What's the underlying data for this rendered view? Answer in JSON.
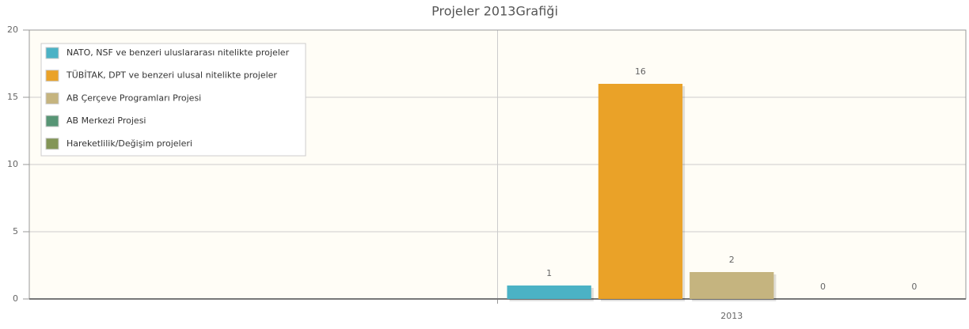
{
  "chart_data": {
    "type": "bar",
    "title": "Projeler 2013Grafiği",
    "categories": [
      null,
      "2013"
    ],
    "series": [
      {
        "name": "NATO, NSF ve benzeri uluslararası nitelikte projeler",
        "color": "#4bb2c5",
        "values": [
          null,
          1
        ]
      },
      {
        "name": "TÜBİTAK, DPT ve benzeri ulusal nitelikte projeler",
        "color": "#eaa228",
        "values": [
          null,
          16
        ]
      },
      {
        "name": "AB Çerçeve Programları Projesi",
        "color": "#c5b47f",
        "values": [
          null,
          2
        ]
      },
      {
        "name": "AB Merkezi Projesi",
        "color": "#579575",
        "values": [
          null,
          0
        ]
      },
      {
        "name": "Hareketlilik/Değişim projeleri",
        "color": "#839557",
        "values": [
          null,
          0
        ]
      }
    ],
    "ylim": [
      0,
      20
    ],
    "yticks": [
      0,
      5,
      10,
      15,
      20
    ],
    "grid": true,
    "legend": "top-left"
  }
}
